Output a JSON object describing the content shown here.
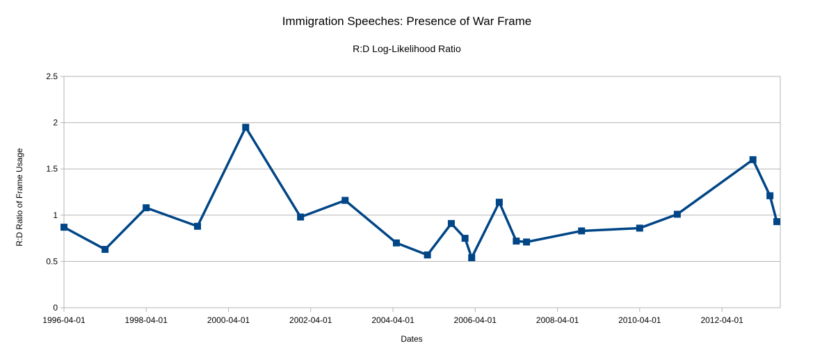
{
  "chart_data": {
    "type": "line",
    "title": "Immigration Speeches: Presence of War Frame",
    "subtitle": "R:D Log-Likelihood Ratio",
    "xlabel": "Dates",
    "ylabel": "R:D Ratio of Frame Usage",
    "xlim": [
      "1996-04-01",
      "2013-09-01"
    ],
    "ylim": [
      0,
      2.5
    ],
    "x_ticks": [
      "1996-04-01",
      "1998-04-01",
      "2000-04-01",
      "2002-04-01",
      "2004-04-01",
      "2006-04-01",
      "2008-04-01",
      "2010-04-01",
      "2012-04-01"
    ],
    "y_ticks": [
      "0",
      "0.5",
      "1",
      "1.5",
      "2",
      "2.5"
    ],
    "grid": true,
    "legend": "none",
    "series": [
      {
        "color": "#004586",
        "marker": "square",
        "points": [
          {
            "x": "1996-04-01",
            "y": 0.87
          },
          {
            "x": "1997-04-01",
            "y": 0.63
          },
          {
            "x": "1998-04-01",
            "y": 1.08
          },
          {
            "x": "1999-07-01",
            "y": 0.88
          },
          {
            "x": "2000-09-01",
            "y": 1.95
          },
          {
            "x": "2002-01-01",
            "y": 0.98
          },
          {
            "x": "2003-02-01",
            "y": 1.16
          },
          {
            "x": "2004-05-01",
            "y": 0.7
          },
          {
            "x": "2005-02-01",
            "y": 0.57
          },
          {
            "x": "2005-09-01",
            "y": 0.91
          },
          {
            "x": "2006-01-01",
            "y": 0.75
          },
          {
            "x": "2006-03-01",
            "y": 0.54
          },
          {
            "x": "2006-11-01",
            "y": 1.14
          },
          {
            "x": "2007-04-01",
            "y": 0.72
          },
          {
            "x": "2007-07-01",
            "y": 0.71
          },
          {
            "x": "2008-11-01",
            "y": 0.83
          },
          {
            "x": "2010-04-01",
            "y": 0.86
          },
          {
            "x": "2011-03-01",
            "y": 1.01
          },
          {
            "x": "2013-01-01",
            "y": 1.6
          },
          {
            "x": "2013-06-01",
            "y": 1.21
          },
          {
            "x": "2013-08-01",
            "y": 0.93
          }
        ]
      }
    ]
  }
}
